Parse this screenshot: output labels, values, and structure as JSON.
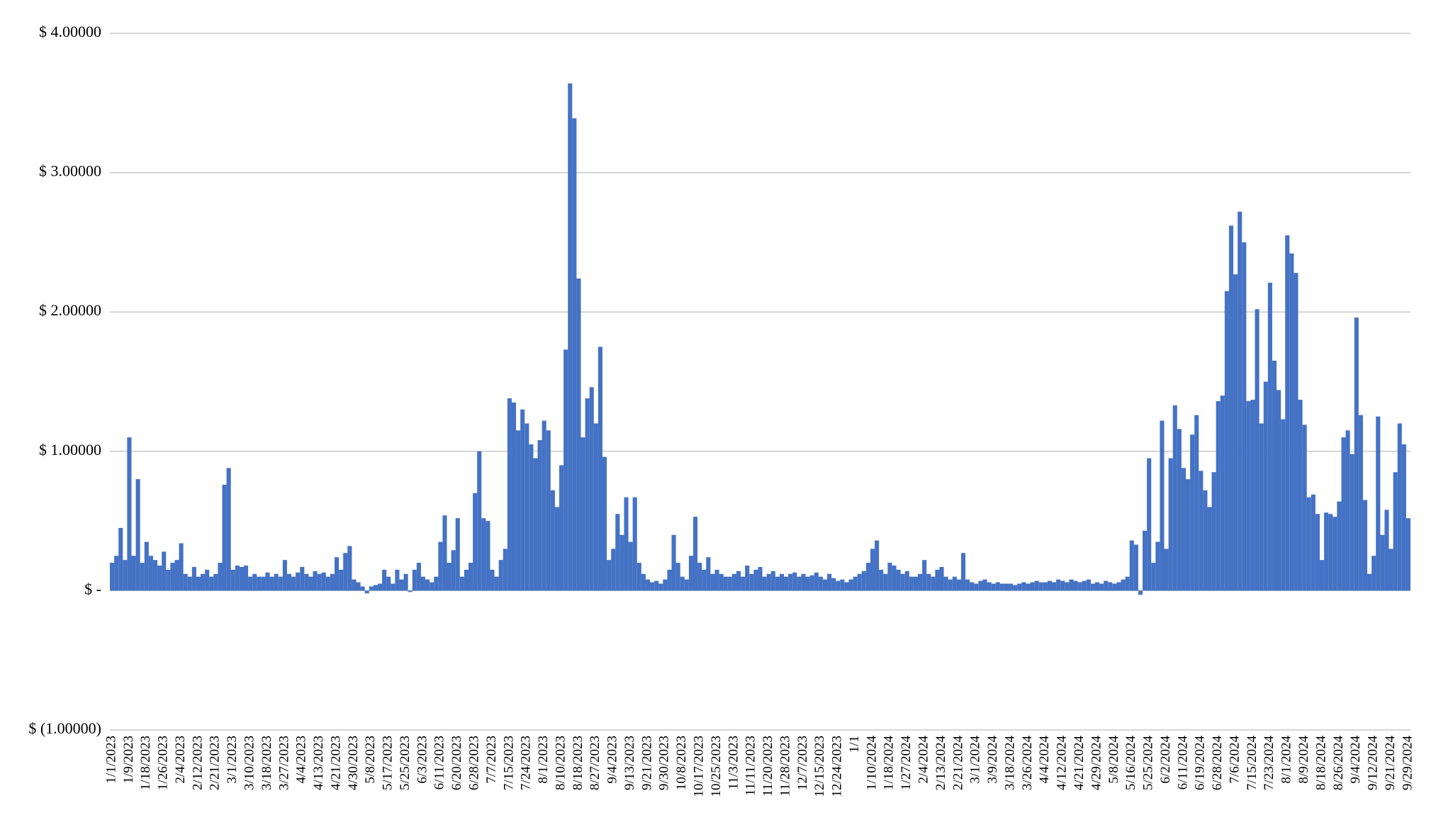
{
  "chart_data": {
    "type": "bar",
    "color": "#4472c4",
    "grid": true,
    "ylim": [
      -1,
      4
    ],
    "yticks": [
      {
        "value": -1,
        "label": "$ (1.00000)"
      },
      {
        "value": 0,
        "label": "$ -"
      },
      {
        "value": 1,
        "label": "$ 1.00000"
      },
      {
        "value": 2,
        "label": "$ 2.00000"
      },
      {
        "value": 3,
        "label": "$ 3.00000"
      },
      {
        "value": 4,
        "label": "$ 4.00000"
      }
    ],
    "categories": [
      "1/1/2023",
      null,
      null,
      null,
      "1/9/2023",
      null,
      null,
      null,
      "1/18/2023",
      null,
      null,
      null,
      "1/26/2023",
      null,
      null,
      null,
      "2/4/2023",
      null,
      null,
      null,
      "2/12/2023",
      null,
      null,
      null,
      "2/21/2023",
      null,
      null,
      null,
      "3/1/2023",
      null,
      null,
      null,
      "3/10/2023",
      null,
      null,
      null,
      "3/18/2023",
      null,
      null,
      null,
      "3/27/2023",
      null,
      null,
      null,
      "4/4/2023",
      null,
      null,
      null,
      "4/13/2023",
      null,
      null,
      null,
      "4/21/2023",
      null,
      null,
      null,
      "4/30/2023",
      null,
      null,
      null,
      "5/8/2023",
      null,
      null,
      null,
      "5/17/2023",
      null,
      null,
      null,
      "5/25/2023",
      null,
      null,
      null,
      "6/3/2023",
      null,
      null,
      null,
      "6/11/2023",
      null,
      null,
      null,
      "6/20/2023",
      null,
      null,
      null,
      "6/28/2023",
      null,
      null,
      null,
      "7/7/2023",
      null,
      null,
      null,
      "7/15/2023",
      null,
      null,
      null,
      "7/24/2023",
      null,
      null,
      null,
      "8/1/2023",
      null,
      null,
      null,
      "8/10/2023",
      null,
      null,
      null,
      "8/18/2023",
      null,
      null,
      null,
      "8/27/2023",
      null,
      null,
      null,
      "9/4/2023",
      null,
      null,
      null,
      "9/13/2023",
      null,
      null,
      null,
      "9/21/2023",
      null,
      null,
      null,
      "9/30/2023",
      null,
      null,
      null,
      "10/8/2023",
      null,
      null,
      null,
      "10/17/2023",
      null,
      null,
      null,
      "10/25/2023",
      null,
      null,
      null,
      "11/3/2023",
      null,
      null,
      null,
      "11/11/2023",
      null,
      null,
      null,
      "11/20/2023",
      null,
      null,
      null,
      "11/28/2023",
      null,
      null,
      null,
      "12/7/2023",
      null,
      null,
      null,
      "12/15/2023",
      null,
      null,
      null,
      "12/24/2023",
      null,
      null,
      null,
      "1/1",
      null,
      null,
      null,
      "1/10/2024",
      null,
      null,
      null,
      "1/18/2024",
      null,
      null,
      null,
      "1/27/2024",
      null,
      null,
      null,
      "2/4/2024",
      null,
      null,
      null,
      "2/13/2024",
      null,
      null,
      null,
      "2/21/2024",
      null,
      null,
      null,
      "3/1/2024",
      null,
      null,
      null,
      "3/9/2024",
      null,
      null,
      null,
      "3/18/2024",
      null,
      null,
      null,
      "3/26/2024",
      null,
      null,
      null,
      "4/4/2024",
      null,
      null,
      null,
      "4/12/2024",
      null,
      null,
      null,
      "4/21/2024",
      null,
      null,
      null,
      "4/29/2024",
      null,
      null,
      null,
      "5/8/2024",
      null,
      null,
      null,
      "5/16/2024",
      null,
      null,
      null,
      "5/25/2024",
      null,
      null,
      null,
      "6/2/2024",
      null,
      null,
      null,
      "6/11/2024",
      null,
      null,
      null,
      "6/19/2024",
      null,
      null,
      null,
      "6/28/2024",
      null,
      null,
      null,
      "7/6/2024",
      null,
      null,
      null,
      "7/15/2024",
      null,
      null,
      null,
      "7/23/2024",
      null,
      null,
      null,
      "8/1/2024",
      null,
      null,
      null,
      "8/9/2024",
      null,
      null,
      null,
      "8/18/2024",
      null,
      null,
      null,
      "8/26/2024",
      null,
      null,
      null,
      "9/4/2024",
      null,
      null,
      null,
      "9/12/2024",
      null,
      null,
      null,
      "9/21/2024",
      null,
      null,
      null,
      "9/29/2024"
    ],
    "values": [
      0.2,
      0.25,
      0.45,
      0.22,
      1.1,
      0.25,
      0.8,
      0.2,
      0.35,
      0.25,
      0.22,
      0.18,
      0.28,
      0.15,
      0.2,
      0.22,
      0.34,
      0.12,
      0.1,
      0.17,
      0.1,
      0.12,
      0.15,
      0.1,
      0.12,
      0.2,
      0.76,
      0.88,
      0.15,
      0.18,
      0.17,
      0.18,
      0.1,
      0.12,
      0.1,
      0.1,
      0.13,
      0.1,
      0.12,
      0.1,
      0.22,
      0.12,
      0.1,
      0.13,
      0.17,
      0.12,
      0.1,
      0.14,
      0.12,
      0.13,
      0.1,
      0.12,
      0.24,
      0.15,
      0.27,
      0.32,
      0.08,
      0.06,
      0.03,
      -0.02,
      0.03,
      0.04,
      0.05,
      0.15,
      0.1,
      0.05,
      0.15,
      0.08,
      0.12,
      -0.01,
      0.15,
      0.2,
      0.1,
      0.08,
      0.06,
      0.1,
      0.35,
      0.54,
      0.2,
      0.29,
      0.52,
      0.1,
      0.15,
      0.2,
      0.7,
      1.0,
      0.52,
      0.5,
      0.15,
      0.1,
      0.22,
      0.3,
      1.38,
      1.35,
      1.15,
      1.3,
      1.2,
      1.05,
      0.95,
      1.08,
      1.22,
      1.15,
      0.72,
      0.6,
      0.9,
      1.73,
      3.64,
      3.39,
      2.24,
      1.1,
      1.38,
      1.46,
      1.2,
      1.75,
      0.96,
      0.22,
      0.3,
      0.55,
      0.4,
      0.67,
      0.35,
      0.67,
      0.2,
      0.12,
      0.08,
      0.06,
      0.07,
      0.05,
      0.08,
      0.15,
      0.4,
      0.2,
      0.1,
      0.08,
      0.25,
      0.53,
      0.2,
      0.15,
      0.24,
      0.12,
      0.15,
      0.12,
      0.1,
      0.1,
      0.12,
      0.14,
      0.1,
      0.18,
      0.12,
      0.15,
      0.17,
      0.1,
      0.12,
      0.14,
      0.1,
      0.12,
      0.1,
      0.12,
      0.13,
      0.1,
      0.12,
      0.1,
      0.11,
      0.13,
      0.1,
      0.08,
      0.12,
      0.09,
      0.07,
      0.08,
      0.06,
      0.08,
      0.1,
      0.12,
      0.14,
      0.2,
      0.3,
      0.36,
      0.15,
      0.12,
      0.2,
      0.18,
      0.15,
      0.12,
      0.14,
      0.1,
      0.1,
      0.12,
      0.22,
      0.12,
      0.1,
      0.15,
      0.17,
      0.1,
      0.08,
      0.1,
      0.08,
      0.27,
      0.08,
      0.06,
      0.05,
      0.07,
      0.08,
      0.06,
      0.05,
      0.06,
      0.05,
      0.05,
      0.05,
      0.04,
      0.05,
      0.06,
      0.05,
      0.06,
      0.07,
      0.06,
      0.06,
      0.07,
      0.06,
      0.08,
      0.07,
      0.06,
      0.08,
      0.07,
      0.06,
      0.07,
      0.08,
      0.05,
      0.06,
      0.05,
      0.07,
      0.06,
      0.05,
      0.06,
      0.08,
      0.1,
      0.36,
      0.33,
      -0.03,
      0.43,
      0.95,
      0.2,
      0.35,
      1.22,
      0.3,
      0.95,
      1.33,
      1.16,
      0.88,
      0.8,
      1.12,
      1.26,
      0.86,
      0.72,
      0.6,
      0.85,
      1.36,
      1.4,
      2.15,
      2.62,
      2.27,
      2.72,
      2.5,
      1.36,
      1.37,
      2.02,
      1.2,
      1.5,
      2.21,
      1.65,
      1.44,
      1.23,
      2.55,
      2.42,
      2.28,
      1.37,
      1.19,
      0.67,
      0.69,
      0.55,
      0.22,
      0.56,
      0.55,
      0.53,
      0.64,
      1.1,
      1.15,
      0.98,
      1.96,
      1.26,
      0.65,
      0.12,
      0.25,
      1.25,
      0.4,
      0.58,
      0.3,
      0.85,
      1.2,
      1.05,
      0.52
    ]
  }
}
